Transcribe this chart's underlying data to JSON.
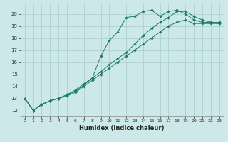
{
  "xlabel": "Humidex (Indice chaleur)",
  "bg_color": "#cce8e8",
  "grid_color": "#aacccc",
  "line_color": "#1a7a6a",
  "xlim": [
    -0.5,
    23.5
  ],
  "ylim": [
    11.5,
    20.8
  ],
  "xticks": [
    0,
    1,
    2,
    3,
    4,
    5,
    6,
    7,
    8,
    9,
    10,
    11,
    12,
    13,
    14,
    15,
    16,
    17,
    18,
    19,
    20,
    21,
    22,
    23
  ],
  "yticks": [
    12,
    13,
    14,
    15,
    16,
    17,
    18,
    19,
    20
  ],
  "series": [
    {
      "x": [
        0,
        1,
        2,
        3,
        4,
        5,
        6,
        7,
        8,
        9,
        10,
        11,
        12,
        13,
        14,
        15,
        16,
        17,
        18,
        19,
        20,
        21,
        22,
        23
      ],
      "y": [
        13,
        12,
        12.5,
        12.8,
        13.0,
        13.3,
        13.6,
        14.1,
        14.7,
        16.5,
        17.8,
        18.5,
        19.7,
        19.8,
        20.2,
        20.3,
        19.8,
        20.2,
        20.3,
        20.0,
        19.5,
        19.3,
        19.3,
        19.3
      ]
    },
    {
      "x": [
        0,
        1,
        2,
        3,
        4,
        5,
        6,
        7,
        8,
        9,
        10,
        11,
        12,
        13,
        14,
        15,
        16,
        17,
        18,
        19,
        20,
        21,
        22,
        23
      ],
      "y": [
        13,
        12,
        12.5,
        12.8,
        13.0,
        13.3,
        13.7,
        14.2,
        14.7,
        15.2,
        15.8,
        16.3,
        16.8,
        17.5,
        18.2,
        18.8,
        19.3,
        19.7,
        20.2,
        20.2,
        19.8,
        19.5,
        19.3,
        19.2
      ]
    },
    {
      "x": [
        0,
        1,
        2,
        3,
        4,
        5,
        6,
        7,
        8,
        9,
        10,
        11,
        12,
        13,
        14,
        15,
        16,
        17,
        18,
        19,
        20,
        21,
        22,
        23
      ],
      "y": [
        13,
        12,
        12.5,
        12.8,
        13.0,
        13.2,
        13.5,
        14.0,
        14.5,
        15.0,
        15.5,
        16.0,
        16.5,
        17.0,
        17.5,
        18.0,
        18.5,
        19.0,
        19.3,
        19.5,
        19.2,
        19.2,
        19.2,
        19.2
      ]
    }
  ]
}
